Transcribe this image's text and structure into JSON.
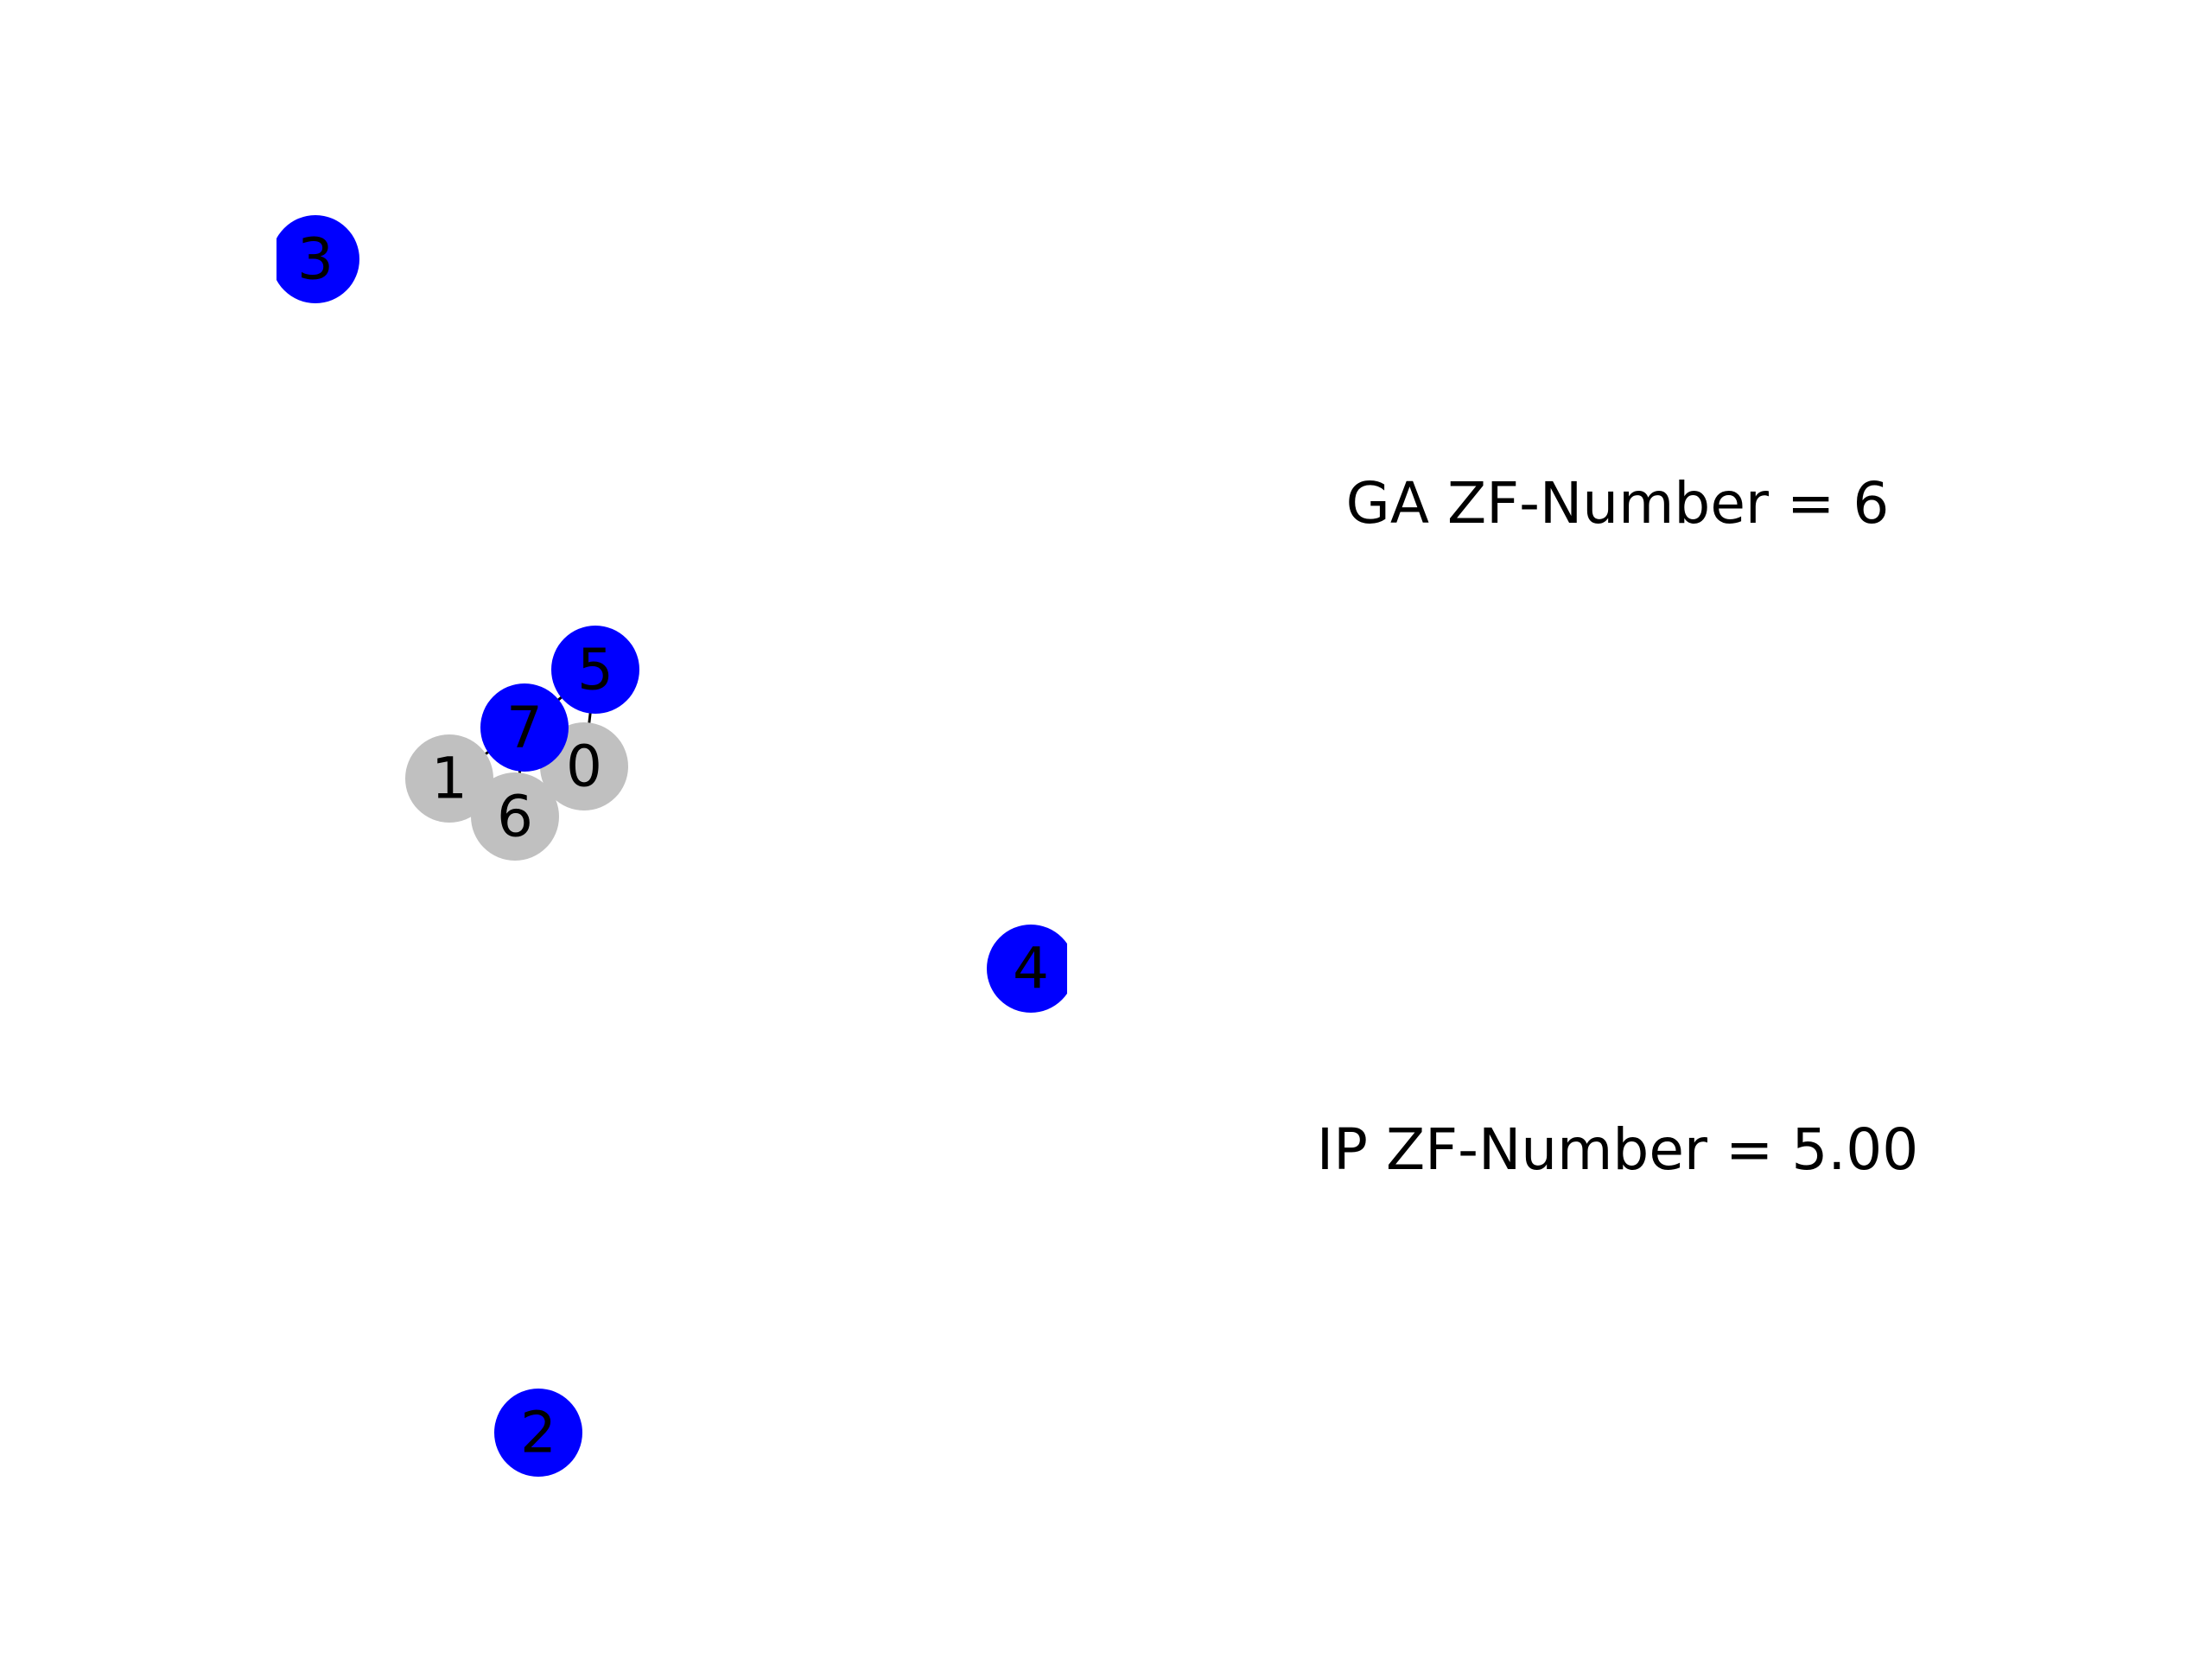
{
  "colors": {
    "background": "#ffffff",
    "selected_node": "#0000ff",
    "unselected_node": "#c0c0c0",
    "edge": "#000000",
    "text": "#000000"
  },
  "graph": {
    "nodes": [
      {
        "id": "0",
        "label": "0",
        "state": "unselected"
      },
      {
        "id": "1",
        "label": "1",
        "state": "unselected"
      },
      {
        "id": "2",
        "label": "2",
        "state": "selected"
      },
      {
        "id": "3",
        "label": "3",
        "state": "selected"
      },
      {
        "id": "4",
        "label": "4",
        "state": "selected"
      },
      {
        "id": "5",
        "label": "5",
        "state": "selected"
      },
      {
        "id": "6",
        "label": "6",
        "state": "unselected"
      },
      {
        "id": "7",
        "label": "7",
        "state": "selected"
      }
    ],
    "edges": [
      {
        "source": "5",
        "target": "0"
      },
      {
        "source": "7",
        "target": "6"
      },
      {
        "source": "7",
        "target": "5"
      },
      {
        "source": "1",
        "target": "7"
      }
    ]
  },
  "annotations": {
    "ga_text": "GA ZF-Number = 6",
    "ip_text": "IP ZF-Number = 5.00"
  }
}
